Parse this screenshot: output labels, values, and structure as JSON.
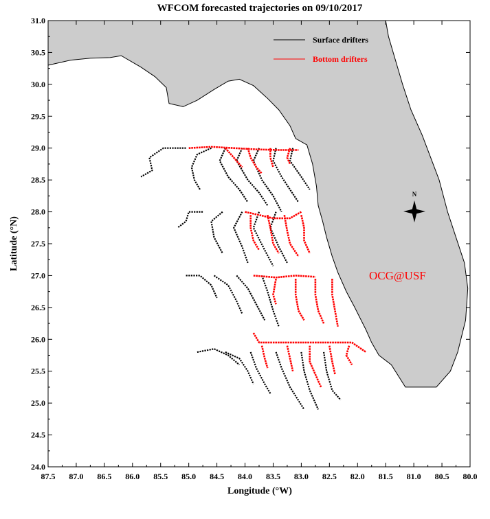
{
  "chart_data": {
    "type": "map",
    "title": "WFCOM forecasted trajectories on 09/10/2017",
    "xlabel": "Longitude (°W)",
    "ylabel": "Latitude (°N)",
    "xlim": [
      87.5,
      80.0
    ],
    "ylim": [
      24.0,
      31.0
    ],
    "xticks": [
      "87.5",
      "87.0",
      "86.5",
      "86.0",
      "85.5",
      "85.0",
      "84.5",
      "84.0",
      "83.5",
      "83.0",
      "82.5",
      "82.0",
      "81.5",
      "81.0",
      "80.5",
      "80.0"
    ],
    "yticks": [
      "24.0",
      "24.5",
      "25.0",
      "25.5",
      "26.0",
      "26.5",
      "27.0",
      "27.5",
      "28.0",
      "28.5",
      "29.0",
      "29.5",
      "30.0",
      "30.5",
      "31.0"
    ],
    "legend": {
      "placement": "top-right",
      "entries": [
        {
          "label": "Surface drifters",
          "color": "#000000"
        },
        {
          "label": "Bottom drifters",
          "color": "#ff0000"
        }
      ]
    },
    "annotation": {
      "text": "OCG@USF",
      "color": "#ff0000"
    },
    "compass_label": "N",
    "colors": {
      "land": "#cccccc",
      "water": "#ffffff",
      "coast": "#000000",
      "surface": "#000000",
      "bottom": "#ff0000"
    },
    "land_polygon": [
      [
        87.5,
        30.3
      ],
      [
        87.1,
        30.38
      ],
      [
        86.75,
        30.41
      ],
      [
        86.4,
        30.42
      ],
      [
        86.2,
        30.45
      ],
      [
        85.85,
        30.27
      ],
      [
        85.6,
        30.12
      ],
      [
        85.4,
        29.95
      ],
      [
        85.35,
        29.7
      ],
      [
        85.1,
        29.65
      ],
      [
        84.85,
        29.75
      ],
      [
        84.55,
        29.92
      ],
      [
        84.3,
        30.05
      ],
      [
        84.1,
        30.08
      ],
      [
        83.85,
        29.98
      ],
      [
        83.6,
        29.78
      ],
      [
        83.4,
        29.6
      ],
      [
        83.2,
        29.35
      ],
      [
        83.1,
        29.15
      ],
      [
        82.9,
        29.05
      ],
      [
        82.8,
        28.75
      ],
      [
        82.73,
        28.4
      ],
      [
        82.7,
        28.1
      ],
      [
        82.62,
        27.85
      ],
      [
        82.55,
        27.6
      ],
      [
        82.45,
        27.3
      ],
      [
        82.35,
        27.05
      ],
      [
        82.2,
        26.75
      ],
      [
        82.05,
        26.5
      ],
      [
        81.85,
        26.15
      ],
      [
        81.75,
        25.95
      ],
      [
        81.62,
        25.75
      ],
      [
        81.4,
        25.6
      ],
      [
        81.15,
        25.25
      ],
      [
        80.6,
        25.25
      ],
      [
        80.35,
        25.5
      ],
      [
        80.22,
        25.8
      ],
      [
        80.08,
        26.3
      ],
      [
        80.04,
        26.8
      ],
      [
        80.1,
        27.2
      ],
      [
        80.25,
        27.6
      ],
      [
        80.4,
        28.0
      ],
      [
        80.55,
        28.5
      ],
      [
        80.7,
        28.85
      ],
      [
        80.85,
        29.2
      ],
      [
        81.05,
        29.6
      ],
      [
        81.2,
        30.0
      ],
      [
        81.35,
        30.45
      ],
      [
        81.45,
        30.75
      ],
      [
        81.5,
        31.0
      ],
      [
        87.5,
        31.0
      ]
    ],
    "surface_drifters": [
      [
        [
          85.05,
          29.0
        ],
        [
          85.45,
          29.0
        ],
        [
          85.7,
          28.85
        ],
        [
          85.65,
          28.65
        ],
        [
          85.85,
          28.55
        ]
      ],
      [
        [
          84.6,
          29.0
        ],
        [
          84.85,
          28.9
        ],
        [
          84.95,
          28.7
        ],
        [
          84.9,
          28.5
        ],
        [
          84.8,
          28.35
        ]
      ],
      [
        [
          84.35,
          29.0
        ],
        [
          84.45,
          28.8
        ],
        [
          84.3,
          28.55
        ],
        [
          84.1,
          28.35
        ],
        [
          83.95,
          28.15
        ]
      ],
      [
        [
          84.05,
          29.0
        ],
        [
          84.15,
          28.8
        ],
        [
          83.95,
          28.5
        ],
        [
          83.75,
          28.3
        ],
        [
          83.6,
          28.1
        ]
      ],
      [
        [
          83.75,
          29.0
        ],
        [
          83.85,
          28.8
        ],
        [
          83.7,
          28.5
        ],
        [
          83.5,
          28.25
        ],
        [
          83.35,
          28.0
        ]
      ],
      [
        [
          83.45,
          29.0
        ],
        [
          83.5,
          28.8
        ],
        [
          83.35,
          28.55
        ],
        [
          83.2,
          28.35
        ],
        [
          83.05,
          28.15
        ]
      ],
      [
        [
          83.15,
          29.0
        ],
        [
          83.2,
          28.8
        ],
        [
          83.0,
          28.55
        ],
        [
          82.85,
          28.35
        ]
      ],
      [
        [
          84.75,
          28.0
        ],
        [
          85.0,
          28.0
        ],
        [
          85.05,
          27.85
        ],
        [
          85.2,
          27.75
        ]
      ],
      [
        [
          84.4,
          28.0
        ],
        [
          84.6,
          27.85
        ],
        [
          84.55,
          27.6
        ],
        [
          84.4,
          27.35
        ]
      ],
      [
        [
          84.05,
          28.0
        ],
        [
          84.2,
          27.75
        ],
        [
          84.05,
          27.45
        ],
        [
          83.95,
          27.2
        ]
      ],
      [
        [
          83.75,
          28.0
        ],
        [
          83.85,
          27.75
        ],
        [
          83.65,
          27.4
        ],
        [
          83.5,
          27.15
        ]
      ],
      [
        [
          83.45,
          28.0
        ],
        [
          83.55,
          27.75
        ],
        [
          83.4,
          27.45
        ],
        [
          83.25,
          27.2
        ]
      ],
      [
        [
          85.05,
          27.0
        ],
        [
          84.8,
          27.0
        ],
        [
          84.6,
          26.85
        ],
        [
          84.5,
          26.65
        ]
      ],
      [
        [
          84.55,
          27.0
        ],
        [
          84.3,
          26.85
        ],
        [
          84.15,
          26.6
        ],
        [
          84.05,
          26.4
        ]
      ],
      [
        [
          84.15,
          27.0
        ],
        [
          83.95,
          26.8
        ],
        [
          83.8,
          26.55
        ],
        [
          83.65,
          26.3
        ]
      ],
      [
        [
          83.7,
          27.0
        ],
        [
          83.6,
          26.75
        ],
        [
          83.5,
          26.45
        ],
        [
          83.4,
          26.2
        ]
      ],
      [
        [
          84.85,
          25.8
        ],
        [
          84.55,
          25.85
        ],
        [
          84.3,
          25.75
        ],
        [
          84.1,
          25.6
        ]
      ],
      [
        [
          84.35,
          25.8
        ],
        [
          84.1,
          25.7
        ],
        [
          83.95,
          25.5
        ],
        [
          83.85,
          25.3
        ]
      ],
      [
        [
          83.9,
          25.8
        ],
        [
          83.8,
          25.55
        ],
        [
          83.65,
          25.3
        ],
        [
          83.55,
          25.15
        ]
      ],
      [
        [
          83.45,
          25.8
        ],
        [
          83.35,
          25.55
        ],
        [
          83.2,
          25.25
        ],
        [
          82.95,
          24.9
        ]
      ],
      [
        [
          83.0,
          25.8
        ],
        [
          82.95,
          25.5
        ],
        [
          82.85,
          25.2
        ],
        [
          82.7,
          24.9
        ]
      ],
      [
        [
          82.6,
          25.8
        ],
        [
          82.55,
          25.5
        ],
        [
          82.45,
          25.2
        ],
        [
          82.3,
          25.05
        ]
      ]
    ],
    "bottom_drifters": [
      [
        [
          85.0,
          29.0
        ],
        [
          84.6,
          29.02
        ],
        [
          84.2,
          29.0
        ],
        [
          83.8,
          28.98
        ],
        [
          83.4,
          28.97
        ],
        [
          83.05,
          28.97
        ]
      ],
      [
        [
          84.35,
          29.0
        ],
        [
          84.2,
          28.85
        ],
        [
          84.05,
          28.7
        ]
      ],
      [
        [
          83.95,
          29.0
        ],
        [
          83.9,
          28.85
        ],
        [
          83.8,
          28.7
        ],
        [
          83.7,
          28.6
        ]
      ],
      [
        [
          83.55,
          29.0
        ],
        [
          83.55,
          28.85
        ],
        [
          83.5,
          28.7
        ]
      ],
      [
        [
          83.2,
          29.0
        ],
        [
          83.25,
          28.85
        ],
        [
          83.2,
          28.75
        ]
      ],
      [
        [
          84.0,
          28.0
        ],
        [
          83.75,
          27.95
        ],
        [
          83.5,
          27.9
        ],
        [
          83.2,
          27.9
        ],
        [
          83.0,
          28.0
        ]
      ],
      [
        [
          83.9,
          27.95
        ],
        [
          83.9,
          27.75
        ],
        [
          83.85,
          27.55
        ],
        [
          83.75,
          27.4
        ]
      ],
      [
        [
          83.6,
          27.95
        ],
        [
          83.55,
          27.75
        ],
        [
          83.5,
          27.5
        ],
        [
          83.4,
          27.35
        ]
      ],
      [
        [
          83.3,
          27.95
        ],
        [
          83.25,
          27.7
        ],
        [
          83.2,
          27.5
        ],
        [
          83.05,
          27.3
        ]
      ],
      [
        [
          83.0,
          27.95
        ],
        [
          82.95,
          27.75
        ],
        [
          82.95,
          27.55
        ],
        [
          82.85,
          27.35
        ]
      ],
      [
        [
          83.85,
          27.0
        ],
        [
          83.45,
          26.97
        ],
        [
          83.1,
          27.0
        ],
        [
          82.75,
          26.98
        ]
      ],
      [
        [
          83.45,
          26.95
        ],
        [
          83.5,
          26.7
        ],
        [
          83.45,
          26.55
        ]
      ],
      [
        [
          83.1,
          26.95
        ],
        [
          83.1,
          26.7
        ],
        [
          83.05,
          26.45
        ],
        [
          82.95,
          26.3
        ]
      ],
      [
        [
          82.75,
          26.95
        ],
        [
          82.75,
          26.7
        ],
        [
          82.7,
          26.45
        ],
        [
          82.6,
          26.25
        ]
      ],
      [
        [
          82.45,
          26.95
        ],
        [
          82.45,
          26.7
        ],
        [
          82.4,
          26.45
        ],
        [
          82.35,
          26.2
        ]
      ],
      [
        [
          83.85,
          26.1
        ],
        [
          83.75,
          25.95
        ],
        [
          83.5,
          25.95
        ],
        [
          83.2,
          25.95
        ],
        [
          82.9,
          25.95
        ],
        [
          82.5,
          25.95
        ],
        [
          82.1,
          25.95
        ],
        [
          81.85,
          25.8
        ]
      ],
      [
        [
          83.7,
          25.9
        ],
        [
          83.65,
          25.7
        ],
        [
          83.6,
          25.55
        ]
      ],
      [
        [
          83.25,
          25.9
        ],
        [
          83.2,
          25.7
        ],
        [
          83.15,
          25.5
        ]
      ],
      [
        [
          82.85,
          25.9
        ],
        [
          82.85,
          25.65
        ],
        [
          82.75,
          25.45
        ],
        [
          82.65,
          25.25
        ]
      ],
      [
        [
          82.5,
          25.9
        ],
        [
          82.45,
          25.65
        ],
        [
          82.4,
          25.45
        ]
      ],
      [
        [
          82.15,
          25.9
        ],
        [
          82.2,
          25.75
        ],
        [
          82.1,
          25.6
        ]
      ]
    ]
  }
}
